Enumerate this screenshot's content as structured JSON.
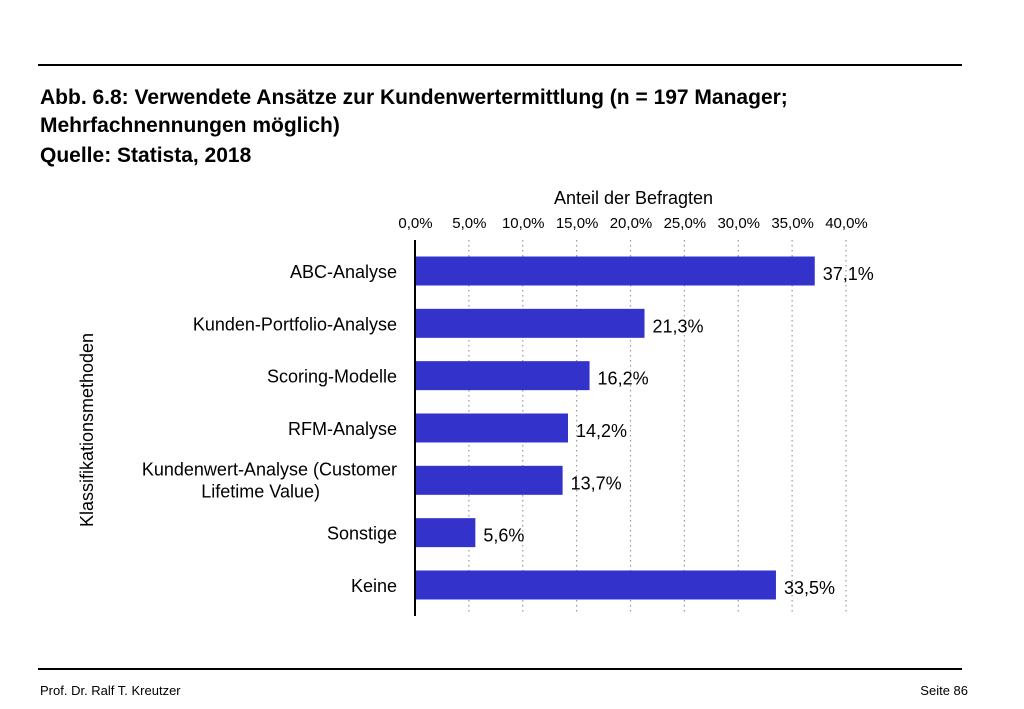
{
  "header": {
    "title_line1": "Abb. 6.8: Verwendete Ansätze zur Kundenwertermittlung (n = 197 Manager;",
    "title_line2": "Mehrfachnennungen möglich)",
    "title_line3": "Quelle: Statista, 2018"
  },
  "footer": {
    "author": "Prof. Dr. Ralf T. Kreutzer",
    "page": "Seite 86"
  },
  "colors": {
    "bar": "#3333cc",
    "grid": "#9a9a9a",
    "axis": "#000000"
  },
  "chart_data": {
    "type": "bar",
    "orientation": "horizontal",
    "title": "",
    "xlabel": "Anteil der Befragten",
    "ylabel": "Klassifikationsmethoden",
    "xlim": [
      0,
      40
    ],
    "x_axis_position": "top",
    "grid": true,
    "xticks": [
      "0,0%",
      "5,0%",
      "10,0%",
      "15,0%",
      "20,0%",
      "25,0%",
      "30,0%",
      "35,0%",
      "40,0%"
    ],
    "categories": [
      [
        "ABC-Analyse"
      ],
      [
        "Kunden-Portfolio-Analyse"
      ],
      [
        "Scoring-Modelle"
      ],
      [
        "RFM-Analyse"
      ],
      [
        "Kundenwert-Analyse (Customer",
        "Lifetime Value)"
      ],
      [
        "Sonstige"
      ],
      [
        "Keine"
      ]
    ],
    "values": [
      37.1,
      21.3,
      16.2,
      14.2,
      13.7,
      5.6,
      33.5
    ],
    "value_labels": [
      "37,1%",
      "21,3%",
      "16,2%",
      "14,2%",
      "13,7%",
      "5,6%",
      "33,5%"
    ]
  }
}
